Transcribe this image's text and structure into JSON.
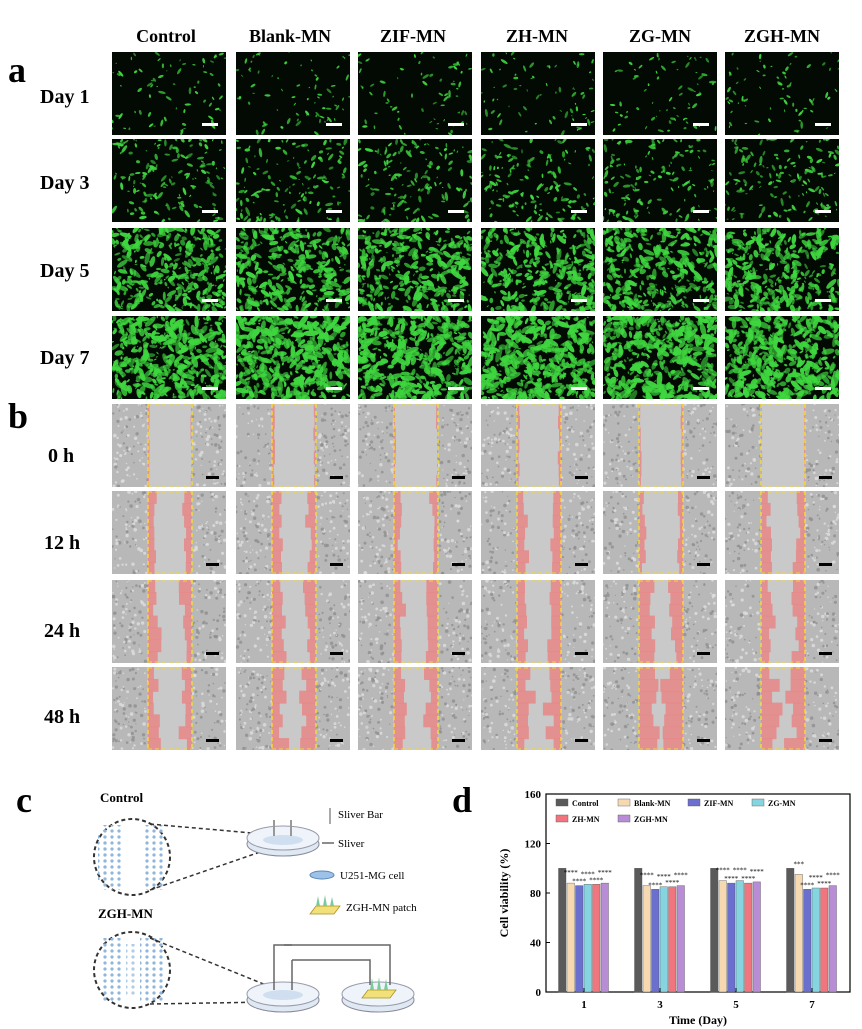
{
  "panels": {
    "a": "a",
    "b": "b",
    "c": "c",
    "d": "d"
  },
  "columns": [
    "Control",
    "Blank-MN",
    "ZIF-MN",
    "ZH-MN",
    "ZG-MN",
    "ZGH-MN"
  ],
  "rows_a": [
    "Day 1",
    "Day 3",
    "Day 5",
    "Day 7"
  ],
  "rows_b": [
    "0 h",
    "12 h",
    "24 h",
    "48 h"
  ],
  "fluorescence_density": [
    0.08,
    0.22,
    0.6,
    0.8
  ],
  "colors": {
    "fluor": "#3fd63f",
    "fluor_bg": "#030a03",
    "migration_bg": "#b8b8b8",
    "migration_gap": "#c9c9c9",
    "migration_red": "#e58a8a",
    "scratch_line": "#f2d83a"
  },
  "diagram_c": {
    "control_label": "Control",
    "zgh_label": "ZGH-MN",
    "legend": [
      "Sliver Bar",
      "Sliver",
      "U251-MG cell",
      "ZGH-MN patch"
    ]
  },
  "chart_data": {
    "type": "bar",
    "xlabel": "Time (Day)",
    "ylabel": "Cell viability (%)",
    "ylim": [
      0,
      160
    ],
    "yticks": [
      0,
      40,
      80,
      120,
      160
    ],
    "categories": [
      "1",
      "3",
      "5",
      "7"
    ],
    "legend_position": "top",
    "series": [
      {
        "name": "Control",
        "color": "#5a5a5a",
        "values": [
          100,
          100,
          100,
          100
        ]
      },
      {
        "name": "Blank-MN",
        "color": "#f6d9b0",
        "values": [
          88,
          86,
          90,
          95
        ]
      },
      {
        "name": "ZIF-MN",
        "color": "#6b6fce",
        "values": [
          86,
          83,
          88,
          83
        ]
      },
      {
        "name": "ZG-MN",
        "color": "#86d4e0",
        "values": [
          87,
          85,
          90,
          84
        ]
      },
      {
        "name": "ZH-MN",
        "color": "#f0757f",
        "values": [
          87,
          85,
          88,
          84
        ]
      },
      {
        "name": "ZGH-MN",
        "color": "#b98cd6",
        "values": [
          88,
          86,
          89,
          86
        ]
      }
    ],
    "annotations": [
      [
        "",
        "****",
        "****",
        "****",
        "****",
        "****"
      ],
      [
        "",
        "****",
        "****",
        "****",
        "****",
        "****"
      ],
      [
        "",
        "****",
        "****",
        "****",
        "****",
        "****"
      ],
      [
        "",
        "***",
        "****",
        "****",
        "****",
        "****"
      ]
    ]
  }
}
